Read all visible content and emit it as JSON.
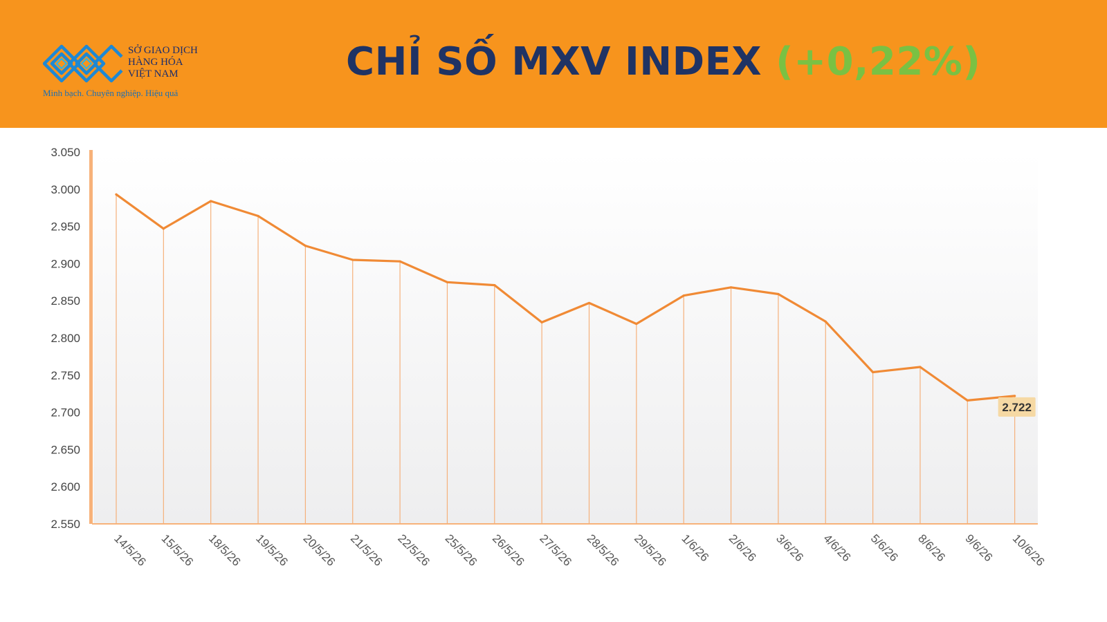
{
  "header": {
    "logo_line1": "SỞ GIAO DỊCH",
    "logo_line2": "HÀNG HÓA",
    "logo_line3": "VIỆT NAM",
    "logo_slogan": "Minh bạch. Chuyên nghiệp. Hiệu quả",
    "title": "CHỈ SỐ MXV INDEX",
    "change": "(+0,22%)"
  },
  "colors": {
    "header_bg": "#f7941d",
    "title": "#1f3364",
    "change": "#7ac143",
    "line": "#f08a35",
    "last_label_bg": "#f6d9a4"
  },
  "chart_data": {
    "type": "line",
    "title": "CHỈ SỐ MXV INDEX",
    "xlabel": "",
    "ylabel": "",
    "ylim": [
      2550,
      3050
    ],
    "y_ticks": [
      2550,
      2600,
      2650,
      2700,
      2750,
      2800,
      2850,
      2900,
      2950,
      3000,
      3050
    ],
    "y_tick_labels": [
      "2.550",
      "2.600",
      "2.650",
      "2.700",
      "2.750",
      "2.800",
      "2.850",
      "2.900",
      "2.950",
      "3.000",
      "3.050"
    ],
    "categories": [
      "14/5/26",
      "15/5/26",
      "18/5/26",
      "19/5/26",
      "20/5/26",
      "21/5/26",
      "22/5/26",
      "25/5/26",
      "26/5/26",
      "27/5/26",
      "28/5/26",
      "29/5/26",
      "1/6/26",
      "2/6/26",
      "3/6/26",
      "4/6/26",
      "5/6/26",
      "8/6/26",
      "9/6/26",
      "10/6/26"
    ],
    "series": [
      {
        "values": [
          2993,
          2947,
          2984,
          2964,
          2924,
          2905,
          2903,
          2875,
          2871,
          2821,
          2847,
          2819,
          2857,
          2868,
          2859,
          2822,
          2754,
          2761,
          2716,
          2722
        ]
      }
    ],
    "last_value_label": "2.722",
    "grid": false,
    "drop_lines": true
  }
}
